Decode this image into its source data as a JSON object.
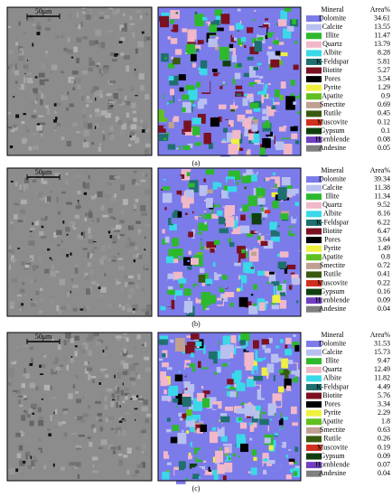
{
  "panels": [
    {
      "label": "(a)",
      "scale_bar": "50μm",
      "legend": {
        "header": [
          "Mineral",
          "Area%"
        ],
        "rows": [
          {
            "name": "Dolomite",
            "area": 34.61,
            "color": "#7b7bea"
          },
          {
            "name": "Calcite",
            "area": 13.55,
            "color": "#b8c0f0"
          },
          {
            "name": "Illite",
            "area": 11.47,
            "color": "#2db82d"
          },
          {
            "name": "Quartz",
            "area": 13.79,
            "color": "#f0b8c8"
          },
          {
            "name": "Albite",
            "area": 8.28,
            "color": "#3ad8e8"
          },
          {
            "name": "K-Feldspar",
            "area": 5.81,
            "color": "#1f6f6f"
          },
          {
            "name": "Biotite",
            "area": 5.27,
            "color": "#7a1020"
          },
          {
            "name": "Pores",
            "area": 3.54,
            "color": "#000000"
          },
          {
            "name": "Pyrite",
            "area": 1.29,
            "color": "#f0f040"
          },
          {
            "name": "Apatite",
            "area": 0.9,
            "color": "#60c020"
          },
          {
            "name": "Smectite",
            "area": 0.69,
            "color": "#c0a090"
          },
          {
            "name": "Rutile",
            "area": 0.45,
            "color": "#3a5a10"
          },
          {
            "name": "Muscovite",
            "area": 0.12,
            "color": "#d03020"
          },
          {
            "name": "Gypsum",
            "area": 0.1,
            "color": "#104010"
          },
          {
            "name": "Hornblende",
            "area": 0.08,
            "color": "#7040c0"
          },
          {
            "name": "Andesine",
            "area": 0.05,
            "color": "#808080"
          }
        ]
      }
    },
    {
      "label": "(b)",
      "scale_bar": "50μm",
      "legend": {
        "header": [
          "Mineral",
          "Area%"
        ],
        "rows": [
          {
            "name": "Dolomite",
            "area": 39.34,
            "color": "#7b7bea"
          },
          {
            "name": "Calcite",
            "area": 11.38,
            "color": "#b8c0f0"
          },
          {
            "name": "Illite",
            "area": 11.34,
            "color": "#2db82d"
          },
          {
            "name": "Quartz",
            "area": 9.52,
            "color": "#f0b8c8"
          },
          {
            "name": "Albite",
            "area": 8.16,
            "color": "#3ad8e8"
          },
          {
            "name": "K-Feldspar",
            "area": 6.22,
            "color": "#1f6f6f"
          },
          {
            "name": "Biotite",
            "area": 6.47,
            "color": "#7a1020"
          },
          {
            "name": "Pores",
            "area": 3.64,
            "color": "#000000"
          },
          {
            "name": "Pyrite",
            "area": 1.49,
            "color": "#f0f040"
          },
          {
            "name": "Apatite",
            "area": 0.8,
            "color": "#60c020"
          },
          {
            "name": "Smectite",
            "area": 0.72,
            "color": "#c0a090"
          },
          {
            "name": "Rutile",
            "area": 0.41,
            "color": "#3a5a10"
          },
          {
            "name": "Muscovite",
            "area": 0.22,
            "color": "#d03020"
          },
          {
            "name": "Gypsum",
            "area": 0.16,
            "color": "#104010"
          },
          {
            "name": "Hornblende",
            "area": 0.09,
            "color": "#7040c0"
          },
          {
            "name": "Andesine",
            "area": 0.04,
            "color": "#808080"
          }
        ]
      }
    },
    {
      "label": "(c)",
      "scale_bar": "50μm",
      "legend": {
        "header": [
          "Mineral",
          "Area%"
        ],
        "rows": [
          {
            "name": "Dolomite",
            "area": 31.53,
            "color": "#7b7bea"
          },
          {
            "name": "Calcite",
            "area": 15.73,
            "color": "#b8c0f0"
          },
          {
            "name": "Illite",
            "area": 9.47,
            "color": "#2db82d"
          },
          {
            "name": "Quartz",
            "area": 12.49,
            "color": "#f0b8c8"
          },
          {
            "name": "Albite",
            "area": 11.82,
            "color": "#3ad8e8"
          },
          {
            "name": "K-Feldspar",
            "area": 4.49,
            "color": "#1f6f6f"
          },
          {
            "name": "Biotite",
            "area": 5.76,
            "color": "#7a1020"
          },
          {
            "name": "Pores",
            "area": 3.34,
            "color": "#000000"
          },
          {
            "name": "Pyrite",
            "area": 2.29,
            "color": "#f0f040"
          },
          {
            "name": "Apatite",
            "area": 1.8,
            "color": "#60c020"
          },
          {
            "name": "Smectite",
            "area": 0.63,
            "color": "#c0a090"
          },
          {
            "name": "Rutile",
            "area": 0.26,
            "color": "#3a5a10"
          },
          {
            "name": "Muscovite",
            "area": 0.19,
            "color": "#d03020"
          },
          {
            "name": "Gypsum",
            "area": 0.09,
            "color": "#104010"
          },
          {
            "name": "Hornblende",
            "area": 0.07,
            "color": "#7040c0"
          },
          {
            "name": "Andesine",
            "area": 0.04,
            "color": "#808080"
          }
        ]
      }
    }
  ]
}
